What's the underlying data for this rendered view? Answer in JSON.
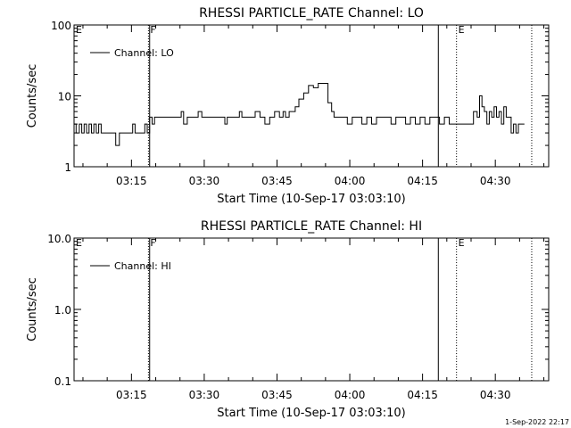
{
  "footer": "1-Sep-2022 22:17",
  "chart_data": [
    {
      "type": "line",
      "title": "RHESSI PARTICLE_RATE Channel: LO",
      "xlabel": "Start Time (10-Sep-17 03:03:10)",
      "ylabel": "Counts/sec",
      "y_scale": "log",
      "ylim": [
        1,
        100
      ],
      "y_ticks": [
        1,
        10,
        100
      ],
      "y_tick_labels": [
        "1",
        "10",
        "100"
      ],
      "x_range": [
        "03:03:10",
        "04:41:00"
      ],
      "x_ticks": [
        "03:15",
        "03:30",
        "03:45",
        "04:00",
        "04:15",
        "04:30"
      ],
      "legend": {
        "label": "Channel: LO",
        "placement": "top-left"
      },
      "markers": [
        {
          "label": "E",
          "time": "03:03:10",
          "style": "dotted"
        },
        {
          "label": "F",
          "time": "03:18:30",
          "style": "dotted"
        },
        {
          "label": "",
          "time": "03:18:45",
          "style": "solid"
        },
        {
          "label": "",
          "time": "04:18:15",
          "style": "solid"
        },
        {
          "label": "E",
          "time": "04:22:00",
          "style": "dotted"
        },
        {
          "label": "",
          "time": "04:37:30",
          "style": "dotted"
        }
      ],
      "series": [
        {
          "name": "Channel: LO",
          "x": [
            "03:03:10",
            "03:04:00",
            "03:04:30",
            "03:05:00",
            "03:05:30",
            "03:06:00",
            "03:06:30",
            "03:07:00",
            "03:07:30",
            "03:08:00",
            "03:08:30",
            "03:09:00",
            "03:10:00",
            "03:11:00",
            "03:11:30",
            "03:12:00",
            "03:13:00",
            "03:14:00",
            "03:14:30",
            "03:15:00",
            "03:15:30",
            "03:16:00",
            "03:17:00",
            "03:17:30",
            "03:18:00",
            "03:18:30",
            "03:19:00",
            "03:19:30",
            "03:20:00",
            "03:21:00",
            "03:22:00",
            "03:23:00",
            "03:24:00",
            "03:25:00",
            "03:25:30",
            "03:26:00",
            "03:27:00",
            "03:28:00",
            "03:28:30",
            "03:29:00",
            "03:30:00",
            "03:31:00",
            "03:32:00",
            "03:33:00",
            "03:34:00",
            "03:34:30",
            "03:35:00",
            "03:36:00",
            "03:37:00",
            "03:37:30",
            "03:38:00",
            "03:39:00",
            "03:40:00",
            "03:41:00",
            "03:42:00",
            "03:43:00",
            "03:44:00",
            "03:45:00",
            "03:46:00",
            "03:46:30",
            "03:47:00",
            "03:48:00",
            "03:48:30",
            "03:49:00",
            "03:50:00",
            "03:51:00",
            "03:52:00",
            "03:53:00",
            "03:54:00",
            "03:55:00",
            "03:56:00",
            "03:56:30",
            "03:57:00",
            "03:58:00",
            "03:59:00",
            "04:00:00",
            "04:01:00",
            "04:02:00",
            "04:03:00",
            "04:04:00",
            "04:05:00",
            "04:06:00",
            "04:07:00",
            "04:08:00",
            "04:09:00",
            "04:10:00",
            "04:11:00",
            "04:12:00",
            "04:13:00",
            "04:14:00",
            "04:15:00",
            "04:16:00",
            "04:17:00",
            "04:18:00",
            "04:19:00",
            "04:20:00",
            "04:21:00",
            "04:22:00",
            "04:23:00",
            "04:24:00",
            "04:25:00",
            "04:26:00",
            "04:26:30",
            "04:27:00",
            "04:27:30",
            "04:28:00",
            "04:28:30",
            "04:29:00",
            "04:29:30",
            "04:30:00",
            "04:30:30",
            "04:31:00",
            "04:31:30",
            "04:32:00",
            "04:32:30",
            "04:33:00",
            "04:33:30",
            "04:34:00",
            "04:34:30",
            "04:35:00",
            "04:35:30",
            "04:36:00"
          ],
          "values": [
            4,
            3,
            4,
            3,
            4,
            3,
            4,
            3,
            4,
            3,
            4,
            3,
            3,
            3,
            3,
            2,
            3,
            3,
            3,
            3,
            4,
            3,
            3,
            3,
            4,
            3,
            5,
            4,
            5,
            5,
            5,
            5,
            5,
            5,
            6,
            4,
            5,
            5,
            5,
            6,
            5,
            5,
            5,
            5,
            5,
            4,
            5,
            5,
            5,
            6,
            5,
            5,
            5,
            6,
            5,
            4,
            5,
            6,
            5,
            6,
            5,
            6,
            6,
            7,
            9,
            11,
            14,
            13,
            15,
            15,
            8,
            6,
            5,
            5,
            5,
            4,
            5,
            5,
            4,
            5,
            4,
            5,
            5,
            5,
            4,
            5,
            5,
            4,
            5,
            4,
            5,
            4,
            5,
            5,
            4,
            5,
            4,
            4,
            4,
            4,
            4,
            6,
            5,
            10,
            7,
            6,
            4,
            6,
            5,
            7,
            5,
            6,
            4,
            7,
            5,
            5,
            3,
            4,
            3,
            4,
            4,
            4
          ]
        }
      ]
    },
    {
      "type": "line",
      "title": "RHESSI PARTICLE_RATE Channel: HI",
      "xlabel": "Start Time (10-Sep-17 03:03:10)",
      "ylabel": "Counts/sec",
      "y_scale": "log",
      "ylim": [
        0.1,
        10
      ],
      "y_ticks": [
        0.1,
        1,
        10
      ],
      "y_tick_labels": [
        "0.1",
        "1.0",
        "10.0"
      ],
      "x_range": [
        "03:03:10",
        "04:41:00"
      ],
      "x_ticks": [
        "03:15",
        "03:30",
        "03:45",
        "04:00",
        "04:15",
        "04:30"
      ],
      "legend": {
        "label": "Channel: HI",
        "placement": "top-left"
      },
      "markers": [
        {
          "label": "E",
          "time": "03:03:10",
          "style": "dotted"
        },
        {
          "label": "F",
          "time": "03:18:30",
          "style": "dotted"
        },
        {
          "label": "",
          "time": "03:18:45",
          "style": "solid"
        },
        {
          "label": "",
          "time": "04:18:15",
          "style": "solid"
        },
        {
          "label": "E",
          "time": "04:22:00",
          "style": "dotted"
        },
        {
          "label": "",
          "time": "04:37:30",
          "style": "dotted"
        }
      ],
      "series": [
        {
          "name": "Channel: HI",
          "x": [],
          "values": []
        }
      ]
    }
  ]
}
